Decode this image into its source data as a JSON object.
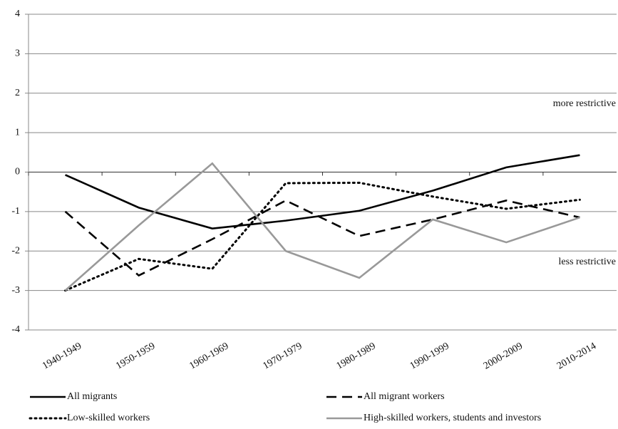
{
  "chart_data": {
    "type": "line",
    "categories": [
      "1940-1949",
      "1950-1959",
      "1960-1969",
      "1970-1979",
      "1980-1989",
      "1990-1999",
      "2000-2009",
      "2010-2014"
    ],
    "series": [
      {
        "name": "All migrants",
        "color": "#000000",
        "dash": "solid",
        "values": [
          -0.07,
          -0.9,
          -1.43,
          -1.23,
          -0.98,
          -0.47,
          0.12,
          0.43
        ]
      },
      {
        "name": "All migrant workers",
        "color": "#000000",
        "dash": "dashed",
        "values": [
          -1.0,
          -2.62,
          -1.7,
          -0.72,
          -1.62,
          -1.2,
          -0.72,
          -1.15
        ]
      },
      {
        "name": "Low-skilled workers",
        "color": "#000000",
        "dash": "dotted",
        "values": [
          -3.0,
          -2.2,
          -2.45,
          -0.28,
          -0.27,
          -0.62,
          -0.93,
          -0.7
        ]
      },
      {
        "name": "High-skilled workers, students and investors",
        "color": "#999999",
        "dash": "solid",
        "values": [
          -3.0,
          -1.35,
          0.22,
          -2.0,
          -2.68,
          -1.2,
          -1.78,
          -1.15
        ]
      }
    ],
    "ylim": [
      -4,
      4
    ],
    "yticks": [
      -4,
      -3,
      -2,
      -1,
      0,
      1,
      2,
      3,
      4
    ],
    "grid": true,
    "annotations": [
      "more restrictive",
      "less restrictive"
    ]
  }
}
